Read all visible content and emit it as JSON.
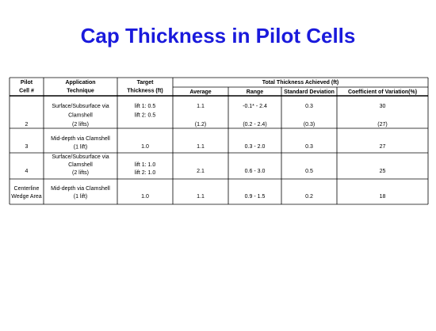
{
  "title": "Cap Thickness in Pilot Cells",
  "table": {
    "header": {
      "columns": [
        [
          "Pilot",
          "Cell #"
        ],
        [
          "Application",
          "Technique"
        ],
        [
          "Target",
          "Thickness (ft)"
        ]
      ],
      "group": "Total Thickness Achieved (ft)",
      "subcolumns": [
        "Average",
        "Range",
        "Standard Deviation",
        "Coefficient of Variation(%)"
      ]
    },
    "rows": [
      [
        [
          "2"
        ],
        [
          "Surface/Subsurface via",
          "Clamshell",
          "(2 lifts)"
        ],
        [
          "lift 1: 0.5",
          "lift 2: 0.5"
        ],
        [
          "1.1",
          "(1.2)"
        ],
        [
          "-0.1* - 2.4",
          "(0.2 - 2.4)"
        ],
        [
          "0.3",
          "(0.3)"
        ],
        [
          "30",
          "(27)"
        ]
      ],
      [
        [
          "3"
        ],
        [
          "Mid-depth via Clamshell",
          "(1 lift)"
        ],
        [
          "1.0"
        ],
        [
          "1.1"
        ],
        [
          "0.3 - 2.0"
        ],
        [
          "0.3"
        ],
        [
          "27"
        ]
      ],
      [
        [
          "4"
        ],
        [
          "Surface/Subsurface via",
          "Clamshell",
          "(2 lifts)"
        ],
        [
          "lift 1: 1.0",
          "lift 2: 1.0"
        ],
        [
          "2.1"
        ],
        [
          "0.6 - 3.0"
        ],
        [
          "0.5"
        ],
        [
          "25"
        ]
      ],
      [
        [
          "Centerline",
          "Wedge Area"
        ],
        [
          "Mid-depth via Clamshell",
          "(1 lift)"
        ],
        [
          "1.0"
        ],
        [
          "1.1"
        ],
        [
          "0.9 - 1.5"
        ],
        [
          "0.2"
        ],
        [
          "18"
        ]
      ]
    ]
  }
}
